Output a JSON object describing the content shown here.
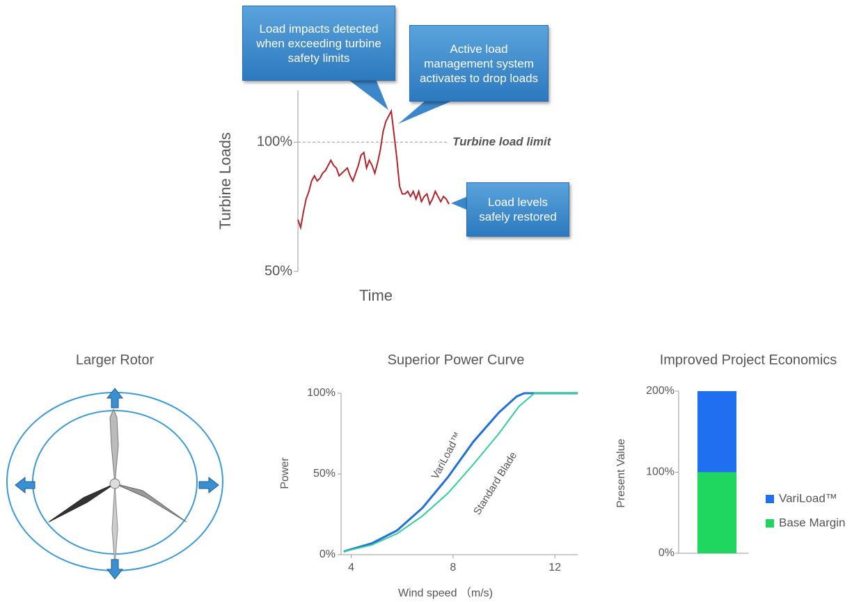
{
  "chart_data": [
    {
      "type": "line",
      "y_label": "Turbine Loads",
      "x_label": "Time",
      "color": "#b0232a",
      "values": [
        70,
        67,
        73,
        78,
        81,
        85,
        87,
        85,
        86,
        88,
        89,
        91,
        93,
        91,
        90,
        87,
        88,
        89,
        90,
        87,
        85,
        88,
        91,
        95,
        96,
        90,
        93,
        91,
        88,
        92,
        97,
        104,
        108,
        110,
        112,
        103,
        94,
        83,
        80,
        80,
        81,
        79,
        81,
        78,
        81,
        77,
        79,
        80,
        76,
        78,
        81,
        79,
        77,
        79,
        78,
        76
      ],
      "ylim": [
        50,
        120
      ],
      "yticks": [
        {
          "value": 50,
          "label": "50%"
        },
        {
          "value": 100,
          "label": "100%"
        }
      ],
      "reference_line": {
        "value": 100,
        "label": "Turbine load limit"
      },
      "annotations": [
        "Load impacts detected when exceeding turbine safety limits",
        "Active load management system activates to drop loads",
        "Load levels safely restored"
      ]
    },
    {
      "type": "line",
      "title": "Superior Power Curve",
      "y_label": "Power",
      "x_label": "Wind speed （m/s)",
      "series": [
        {
          "name": "VariLoad™",
          "color": "#1e6fd9",
          "x": [
            3.7,
            4.8,
            5.8,
            6.8,
            7.8,
            8.8,
            9.8,
            10.5,
            10.8,
            12.9
          ],
          "values": [
            2,
            7,
            15,
            29,
            48,
            70,
            88,
            98,
            100,
            100
          ]
        },
        {
          "name": "Standard Blade",
          "color": "#2fcf97",
          "x": [
            3.7,
            4.8,
            5.8,
            6.8,
            7.8,
            8.8,
            9.8,
            10.6,
            11.2,
            12.9
          ],
          "values": [
            2,
            6,
            13,
            24,
            38,
            56,
            75,
            92,
            100,
            100
          ]
        }
      ],
      "xlim": [
        3.6,
        12.9
      ],
      "xticks": [
        4,
        8,
        12
      ],
      "ylim": [
        0,
        100
      ],
      "yticks": [
        {
          "value": 0,
          "label": "0%"
        },
        {
          "value": 50,
          "label": "50%"
        },
        {
          "value": 100,
          "label": "100%"
        }
      ]
    },
    {
      "type": "stacked_bar",
      "title": "Improved Project Economics",
      "y_label": "Present Value",
      "categories": [
        null
      ],
      "series": [
        {
          "name": "Base Margin",
          "color": "#1fd65f",
          "values": [
            100
          ]
        },
        {
          "name": "VariLoad™",
          "color": "#1f6ff0",
          "values": [
            100
          ]
        }
      ],
      "ylim": [
        0,
        200
      ],
      "yticks": [
        {
          "value": 0,
          "label": "0%"
        },
        {
          "value": 100,
          "label": "100%"
        },
        {
          "value": 200,
          "label": "200%"
        }
      ]
    }
  ],
  "rotor_panel": {
    "title": "Larger Rotor"
  }
}
